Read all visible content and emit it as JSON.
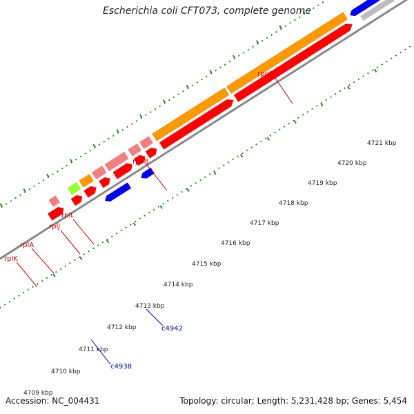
{
  "header": {
    "title": "Escherichia coli CFT073, complete genome"
  },
  "footer": {
    "accession": "Accession: NC_004431",
    "summary": "Topology: circular; Length: 5,231,428 bp; Genes: 5,454"
  },
  "scale_labels": [
    "4709 kbp",
    "4710 kbp",
    "4711 kbp",
    "4712 kbp",
    "4713 kbp",
    "4714 kbp",
    "4715 kbp",
    "4716 kbp",
    "4717 kbp",
    "4718 kbp",
    "4719 kbp",
    "4720 kbp",
    "4721 kbp"
  ],
  "gene_labels": {
    "rpoC": "rpoC",
    "rpoB": "rpoB",
    "rplL": "rplL",
    "rplJ": "rplJ",
    "rplA": "rplA",
    "rplK": "rplK",
    "c4942": "c4942",
    "c4938": "c4938"
  },
  "colors": {
    "orange": "#ff9900",
    "red": "#ff0000",
    "pink": "#f08080",
    "blue": "#0000ee",
    "green": "#99ff33",
    "backbone": "#888888",
    "dots": "#228b22",
    "label_red": "#cc0000",
    "label_blue": "#0000aa"
  }
}
